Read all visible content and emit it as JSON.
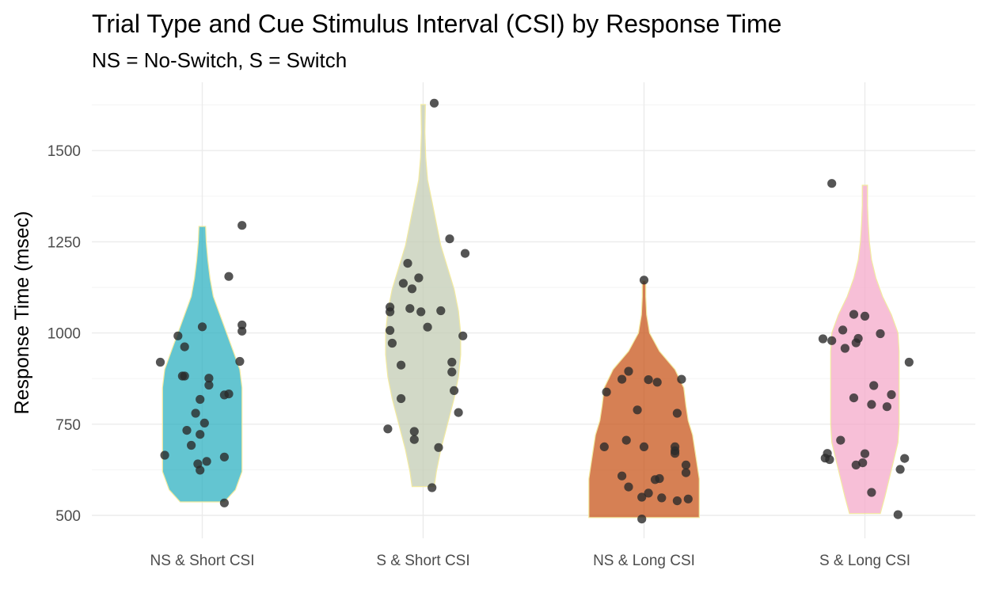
{
  "chart_data": {
    "type": "violin",
    "title": "Trial Type and Cue Stimulus Interval (CSI) by Response Time",
    "subtitle": "NS = No-Switch, S = Switch",
    "xlabel": "",
    "ylabel": "Response Time (msec)",
    "ylim": [
      455,
      1640
    ],
    "yticks": [
      500,
      750,
      1000,
      1250,
      1500
    ],
    "ytick_labels": [
      "500",
      "750",
      "1000",
      "1250",
      "1500"
    ],
    "grid": true,
    "legend": "none",
    "categories": [
      "NS & Short CSI",
      "S & Short CSI",
      "NS & Long CSI",
      "S & Long CSI"
    ],
    "series": [
      {
        "fill": "#2fb1c1",
        "points": [
          [
            -0.19,
            920
          ],
          [
            -0.11,
            992
          ],
          [
            -0.08,
            962
          ],
          [
            -0.09,
            882
          ],
          [
            -0.08,
            882
          ],
          [
            0.0,
            1017
          ],
          [
            0.12,
            1155
          ],
          [
            0.12,
            833
          ],
          [
            0.1,
            830
          ],
          [
            0.18,
            1295
          ],
          [
            0.17,
            922
          ],
          [
            0.18,
            1005
          ],
          [
            0.18,
            1022
          ],
          [
            0.03,
            876
          ],
          [
            0.03,
            857
          ],
          [
            -0.01,
            818
          ],
          [
            -0.03,
            780
          ],
          [
            0.01,
            753
          ],
          [
            -0.07,
            733
          ],
          [
            -0.01,
            722
          ],
          [
            -0.05,
            692
          ],
          [
            -0.17,
            665
          ],
          [
            0.1,
            660
          ],
          [
            -0.02,
            641
          ],
          [
            0.02,
            648
          ],
          [
            -0.01,
            624
          ],
          [
            0.1,
            534
          ]
        ],
        "profile": [
          [
            537,
            0.1
          ],
          [
            570,
            0.15
          ],
          [
            620,
            0.18
          ],
          [
            680,
            0.18
          ],
          [
            740,
            0.18
          ],
          [
            800,
            0.18
          ],
          [
            850,
            0.18
          ],
          [
            900,
            0.17
          ],
          [
            950,
            0.14
          ],
          [
            1000,
            0.11
          ],
          [
            1050,
            0.08
          ],
          [
            1100,
            0.05
          ],
          [
            1150,
            0.035
          ],
          [
            1200,
            0.025
          ],
          [
            1250,
            0.018
          ],
          [
            1292,
            0.015
          ]
        ]
      },
      {
        "fill": "#c3ccb4",
        "points": [
          [
            0.05,
            1630
          ],
          [
            0.12,
            1258
          ],
          [
            0.19,
            1218
          ],
          [
            -0.07,
            1191
          ],
          [
            -0.02,
            1151
          ],
          [
            -0.09,
            1136
          ],
          [
            -0.05,
            1121
          ],
          [
            -0.15,
            1071
          ],
          [
            -0.06,
            1067
          ],
          [
            -0.15,
            1058
          ],
          [
            -0.01,
            1058
          ],
          [
            0.08,
            1061
          ],
          [
            -0.15,
            1007
          ],
          [
            0.02,
            1016
          ],
          [
            0.18,
            992
          ],
          [
            -0.14,
            972
          ],
          [
            -0.1,
            912
          ],
          [
            0.13,
            920
          ],
          [
            0.13,
            893
          ],
          [
            0.14,
            842
          ],
          [
            -0.1,
            820
          ],
          [
            0.16,
            782
          ],
          [
            -0.16,
            737
          ],
          [
            -0.04,
            730
          ],
          [
            -0.04,
            708
          ],
          [
            0.07,
            686
          ],
          [
            0.04,
            576
          ]
        ],
        "profile": [
          [
            579,
            0.05
          ],
          [
            620,
            0.06
          ],
          [
            680,
            0.08
          ],
          [
            750,
            0.11
          ],
          [
            820,
            0.14
          ],
          [
            880,
            0.16
          ],
          [
            940,
            0.17
          ],
          [
            1000,
            0.17
          ],
          [
            1060,
            0.16
          ],
          [
            1120,
            0.14
          ],
          [
            1180,
            0.11
          ],
          [
            1240,
            0.08
          ],
          [
            1300,
            0.06
          ],
          [
            1360,
            0.04
          ],
          [
            1420,
            0.02
          ],
          [
            1480,
            0.012
          ],
          [
            1550,
            0.008
          ],
          [
            1626,
            0.01
          ]
        ]
      },
      {
        "fill": "#c8561b",
        "points": [
          [
            0.0,
            1145
          ],
          [
            -0.17,
            838
          ],
          [
            -0.1,
            873
          ],
          [
            -0.07,
            895
          ],
          [
            0.02,
            872
          ],
          [
            0.06,
            865
          ],
          [
            0.17,
            873
          ],
          [
            0.15,
            780
          ],
          [
            -0.03,
            789
          ],
          [
            -0.18,
            688
          ],
          [
            -0.08,
            706
          ],
          [
            0.0,
            688
          ],
          [
            0.14,
            688
          ],
          [
            0.14,
            670
          ],
          [
            0.14,
            677
          ],
          [
            0.19,
            638
          ],
          [
            0.19,
            617
          ],
          [
            -0.1,
            608
          ],
          [
            -0.07,
            578
          ],
          [
            0.05,
            598
          ],
          [
            0.07,
            601
          ],
          [
            0.02,
            561
          ],
          [
            -0.01,
            550
          ],
          [
            0.08,
            548
          ],
          [
            0.15,
            540
          ],
          [
            0.2,
            545
          ],
          [
            -0.01,
            490
          ]
        ],
        "profile": [
          [
            494,
            0.25
          ],
          [
            520,
            0.25
          ],
          [
            560,
            0.25
          ],
          [
            600,
            0.25
          ],
          [
            640,
            0.24
          ],
          [
            680,
            0.23
          ],
          [
            720,
            0.22
          ],
          [
            760,
            0.2
          ],
          [
            800,
            0.19
          ],
          [
            850,
            0.18
          ],
          [
            900,
            0.14
          ],
          [
            950,
            0.07
          ],
          [
            1000,
            0.025
          ],
          [
            1050,
            0.012
          ],
          [
            1100,
            0.008
          ],
          [
            1143,
            0.008
          ]
        ]
      },
      {
        "fill": "#f4a9c9",
        "points": [
          [
            -0.15,
            1410
          ],
          [
            -0.05,
            1051
          ],
          [
            0.0,
            1046
          ],
          [
            -0.1,
            1008
          ],
          [
            0.07,
            998
          ],
          [
            -0.19,
            984
          ],
          [
            -0.15,
            979
          ],
          [
            -0.09,
            958
          ],
          [
            -0.04,
            973
          ],
          [
            -0.03,
            985
          ],
          [
            0.2,
            920
          ],
          [
            0.04,
            856
          ],
          [
            0.12,
            831
          ],
          [
            0.1,
            798
          ],
          [
            0.03,
            804
          ],
          [
            -0.05,
            822
          ],
          [
            -0.11,
            706
          ],
          [
            0.0,
            669
          ],
          [
            -0.18,
            657
          ],
          [
            -0.16,
            653
          ],
          [
            -0.17,
            670
          ],
          [
            -0.04,
            638
          ],
          [
            -0.01,
            644
          ],
          [
            0.18,
            656
          ],
          [
            0.16,
            626
          ],
          [
            0.03,
            563
          ],
          [
            0.15,
            502
          ]
        ],
        "profile": [
          [
            505,
            0.07
          ],
          [
            550,
            0.09
          ],
          [
            600,
            0.11
          ],
          [
            650,
            0.13
          ],
          [
            700,
            0.15
          ],
          [
            750,
            0.155
          ],
          [
            800,
            0.155
          ],
          [
            850,
            0.155
          ],
          [
            900,
            0.155
          ],
          [
            950,
            0.155
          ],
          [
            1000,
            0.15
          ],
          [
            1050,
            0.12
          ],
          [
            1100,
            0.08
          ],
          [
            1150,
            0.05
          ],
          [
            1200,
            0.03
          ],
          [
            1250,
            0.02
          ],
          [
            1300,
            0.015
          ],
          [
            1350,
            0.012
          ],
          [
            1405,
            0.012
          ]
        ]
      }
    ]
  }
}
